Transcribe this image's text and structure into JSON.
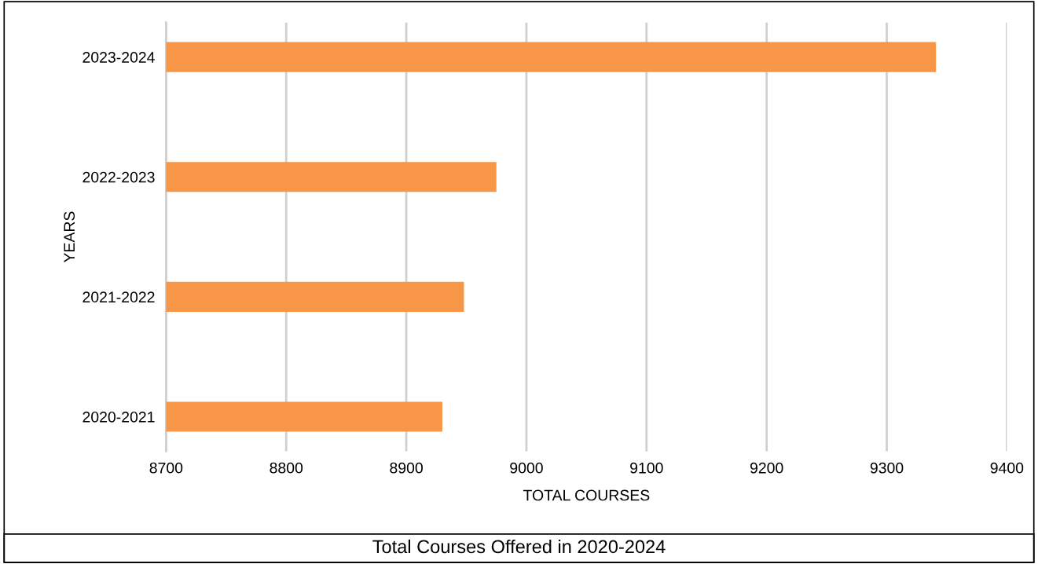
{
  "chart_data": {
    "type": "bar",
    "orientation": "horizontal",
    "title": "Total Courses Offered in 2020-2024",
    "xlabel": "TOTAL COURSES",
    "ylabel": "YEARS",
    "categories": [
      "2023-2024",
      "2022-2023",
      "2021-2022",
      "2020-2021"
    ],
    "values": [
      9341,
      8975,
      8948,
      8930
    ],
    "color": "#f79646",
    "xlim": [
      8700,
      9400
    ],
    "xticks": [
      8700,
      8800,
      8900,
      9000,
      9100,
      9200,
      9300,
      9400
    ],
    "grid": "x"
  }
}
